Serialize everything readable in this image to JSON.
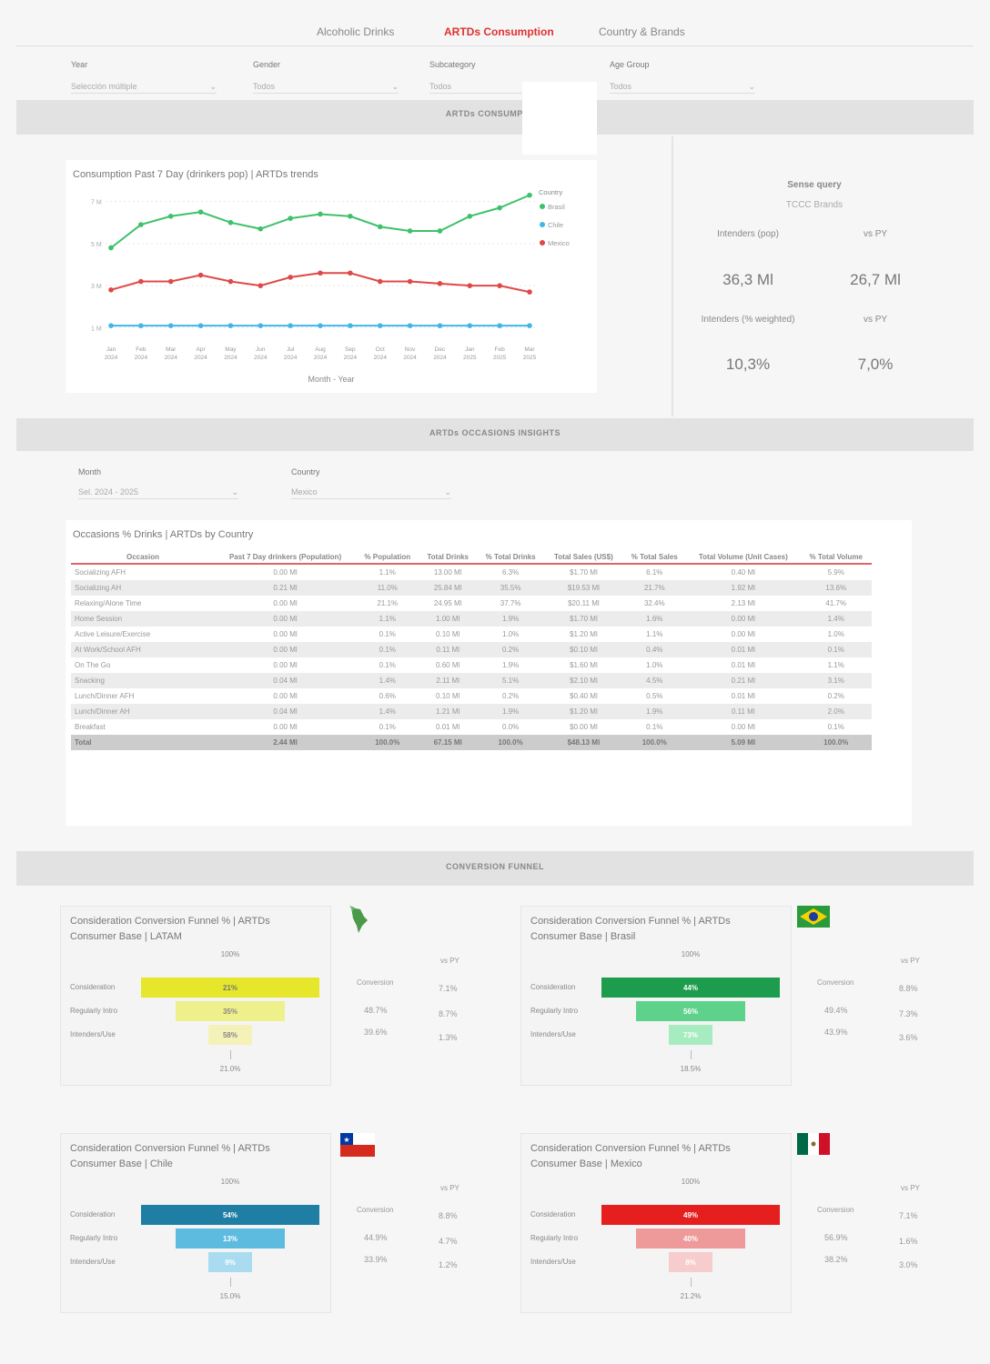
{
  "nav": {
    "tabs": [
      "Alcoholic Drinks",
      "ARTDs Consumption",
      "Country & Brands"
    ],
    "active_tab": "ARTDs Consumption"
  },
  "filters": [
    {
      "label": "Year",
      "value": "Selección múltiple"
    },
    {
      "label": "Gender",
      "value": "Todos"
    },
    {
      "label": "Subcategory",
      "value": "Todos"
    },
    {
      "label": "Age Group",
      "value": "Todos"
    }
  ],
  "sections": {
    "consumption": "ARTDs CONSUMPTION",
    "occasions": "ARTDs OCCASIONS INSIGHTS",
    "funnel": "CONVERSION FUNNEL"
  },
  "line_chart": {
    "title": "Consumption Past 7 Day (drinkers pop) | ARTDs trends",
    "xlabel": "Month - Year",
    "legend_title": "Country",
    "series_names": [
      "Brasil",
      "Chile",
      "Mexico"
    ],
    "series_colors": [
      "#3ec16b",
      "#41b6e6",
      "#e04848"
    ],
    "y_ticks": [
      "7 M",
      "5 M",
      "3 M",
      "1 M"
    ],
    "months": [
      "Jan 2024",
      "Feb 2024",
      "Mar 2024",
      "Apr 2024",
      "May 2024",
      "Jun 2024",
      "Jul 2024",
      "Aug 2024",
      "Sep 2024",
      "Oct 2024",
      "Nov 2024",
      "Dec 2024",
      "Jan 2025",
      "Feb 2025",
      "Mar 2025"
    ]
  },
  "chart_data": {
    "type": "line",
    "title": "Consumption Past 7 Day (drinkers pop) | ARTDs trends",
    "xlabel": "Month - Year",
    "ylabel": "",
    "x": [
      "Jan 2024",
      "Feb 2024",
      "Mar 2024",
      "Apr 2024",
      "May 2024",
      "Jun 2024",
      "Jul 2024",
      "Aug 2024",
      "Sep 2024",
      "Oct 2024",
      "Nov 2024",
      "Dec 2024",
      "Jan 2025",
      "Feb 2025",
      "Mar 2025"
    ],
    "ylim": [
      0.5,
      7.5
    ],
    "series": [
      {
        "name": "Brasil",
        "values": [
          4.8,
          5.9,
          6.3,
          6.5,
          6.0,
          5.7,
          6.2,
          6.4,
          6.3,
          5.8,
          5.6,
          5.6,
          6.3,
          6.7,
          7.3
        ]
      },
      {
        "name": "Chile",
        "values": [
          1.1,
          1.1,
          1.1,
          1.1,
          1.1,
          1.1,
          1.1,
          1.1,
          1.1,
          1.1,
          1.1,
          1.1,
          1.1,
          1.1,
          1.1
        ]
      },
      {
        "name": "Mexico",
        "values": [
          2.8,
          3.2,
          3.2,
          3.5,
          3.2,
          3.0,
          3.4,
          3.6,
          3.6,
          3.2,
          3.2,
          3.1,
          3.0,
          3.0,
          2.7
        ]
      }
    ]
  },
  "kpi": {
    "title": "Sense query",
    "subtitle": "TCCC Brands",
    "col1": "Intenders (pop)",
    "col2": "vs PY",
    "v1": "36,3 Ml",
    "v2": "26,7 Ml",
    "col3": "Intenders (% weighted)",
    "col4": "vs PY",
    "v3": "10,3%",
    "v4": "7,0%"
  },
  "occasion_filters": [
    {
      "label": "Month",
      "value": "Sel. 2024 - 2025"
    },
    {
      "label": "Country",
      "value": "Mexico"
    }
  ],
  "table": {
    "title": "Occasions % Drinks | ARTDs by Country",
    "headers": [
      "Occasion",
      "Past 7 Day drinkers (Population)",
      "% Population",
      "Total Drinks",
      "% Total Drinks",
      "Total Sales (US$)",
      "% Total Sales",
      "Total Volume (Unit Cases)",
      "% Total Volume"
    ],
    "rows": [
      [
        "Socializing AFH",
        "0.00 Ml",
        "1.1%",
        "13.00 Ml",
        "6.3%",
        "$1.70 Ml",
        "6.1%",
        "0.40 Ml",
        "5.9%"
      ],
      [
        "Socializing AH",
        "0.21 Ml",
        "11.0%",
        "25.84 Ml",
        "35.5%",
        "$19.53 Ml",
        "21.7%",
        "1.92 Ml",
        "13.6%"
      ],
      [
        "Relaxing/Alone Time",
        "0.00 Ml",
        "21.1%",
        "24.95 Ml",
        "37.7%",
        "$20.11 Ml",
        "32.4%",
        "2.13 Ml",
        "41.7%"
      ],
      [
        "Home Session",
        "0.00 Ml",
        "1.1%",
        "1.00 Ml",
        "1.9%",
        "$1.70 Ml",
        "1.6%",
        "0.00 Ml",
        "1.4%"
      ],
      [
        "Active Leisure/Exercise",
        "0.00 Ml",
        "0.1%",
        "0.10 Ml",
        "1.0%",
        "$1.20 Ml",
        "1.1%",
        "0.00 Ml",
        "1.0%"
      ],
      [
        "At Work/School AFH",
        "0.00 Ml",
        "0.1%",
        "0.11 Ml",
        "0.2%",
        "$0.10 Ml",
        "0.4%",
        "0.01 Ml",
        "0.1%"
      ],
      [
        "On The Go",
        "0.00 Ml",
        "0.1%",
        "0.60 Ml",
        "1.9%",
        "$1.60 Ml",
        "1.0%",
        "0.01 Ml",
        "1.1%"
      ],
      [
        "Snacking",
        "0.04 Ml",
        "1.4%",
        "2.11 Ml",
        "5.1%",
        "$2.10 Ml",
        "4.5%",
        "0.21 Ml",
        "3.1%"
      ],
      [
        "Lunch/Dinner AFH",
        "0.00 Ml",
        "0.6%",
        "0.10 Ml",
        "0.2%",
        "$0.40 Ml",
        "0.5%",
        "0.01 Ml",
        "0.2%"
      ],
      [
        "Lunch/Dinner AH",
        "0.04 Ml",
        "1.4%",
        "1.21 Ml",
        "1.9%",
        "$1.20 Ml",
        "1.9%",
        "0.11 Ml",
        "2.0%"
      ],
      [
        "Breakfast",
        "0.00 Ml",
        "0.1%",
        "0.01 Ml",
        "0.0%",
        "$0.00 Ml",
        "0.1%",
        "0.00 Ml",
        "0.1%"
      ]
    ],
    "total": [
      "Total",
      "2.44 Ml",
      "100.0%",
      "67.15 Ml",
      "100.0%",
      "$48.13 Ml",
      "100.0%",
      "5.09 Ml",
      "100.0%"
    ]
  },
  "funnels": [
    {
      "title1": "Consideration Conversion Funnel % | ARTDs",
      "title2": "Consumer Base | LATAM",
      "top": "100%",
      "bottom": "21.0%",
      "stages": [
        "Consideration",
        "Regularly Intro",
        "Intenders/Use"
      ],
      "bars": [
        "21%",
        "35%",
        "58%"
      ],
      "colors": [
        "#e6e62a",
        "#eef08c",
        "#f4f2b8"
      ],
      "text_colors": [
        "#777",
        "#888",
        "#888"
      ],
      "conv_label": "Conversion",
      "vs_label": "vs PY",
      "conv": [
        "48.7%",
        "39.6%"
      ],
      "vs": [
        "7.1%",
        "8.7%",
        "1.3%"
      ]
    },
    {
      "title1": "Consideration Conversion Funnel % | ARTDs",
      "title2": "Consumer Base | Brasil",
      "top": "100%",
      "bottom": "18.5%",
      "stages": [
        "Consideration",
        "Regularly Intro",
        "Intenders/Use"
      ],
      "bars": [
        "44%",
        "56%",
        "73%"
      ],
      "colors": [
        "#1e9c4e",
        "#5ed28a",
        "#a6ecc0"
      ],
      "text_colors": [
        "#fff",
        "#fff",
        "#fff"
      ],
      "conv_label": "Conversion",
      "vs_label": "vs PY",
      "conv": [
        "49.4%",
        "43.9%"
      ],
      "vs": [
        "8.8%",
        "7.3%",
        "3.6%"
      ]
    },
    {
      "title1": "Consideration Conversion Funnel % | ARTDs",
      "title2": "Consumer Base | Chile",
      "top": "100%",
      "bottom": "15.0%",
      "stages": [
        "Consideration",
        "Regularly Intro",
        "Intenders/Use"
      ],
      "bars": [
        "54%",
        "13%",
        "9%"
      ],
      "colors": [
        "#1f7ea3",
        "#5dbbe0",
        "#a9dcf0"
      ],
      "text_colors": [
        "#fff",
        "#fff",
        "#fff"
      ],
      "conv_label": "Conversion",
      "vs_label": "vs PY",
      "conv": [
        "44.9%",
        "33.9%"
      ],
      "vs": [
        "8.8%",
        "4.7%",
        "1.2%"
      ]
    },
    {
      "title1": "Consideration Conversion Funnel % | ARTDs",
      "title2": "Consumer Base | Mexico",
      "top": "100%",
      "bottom": "21.2%",
      "stages": [
        "Consideration",
        "Regularly Intro",
        "Intenders/Use"
      ],
      "bars": [
        "49%",
        "40%",
        "8%"
      ],
      "colors": [
        "#e51e1e",
        "#ee9a9a",
        "#f6cccc"
      ],
      "text_colors": [
        "#fff",
        "#fff",
        "#fff"
      ],
      "conv_label": "Conversion",
      "vs_label": "vs PY",
      "conv": [
        "56.9%",
        "38.2%"
      ],
      "vs": [
        "7.1%",
        "1.6%",
        "3.0%"
      ]
    }
  ]
}
